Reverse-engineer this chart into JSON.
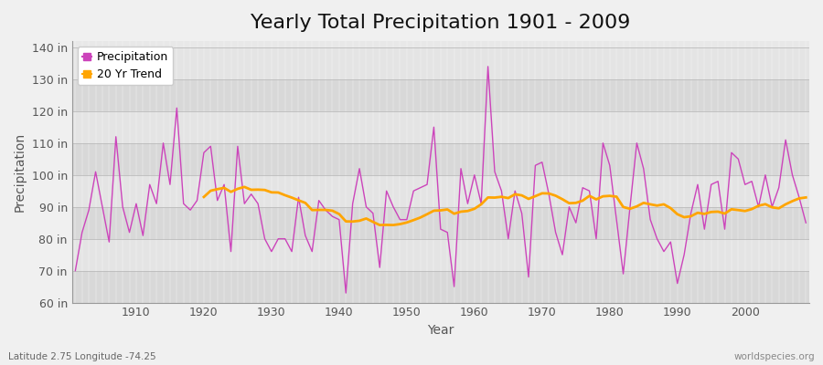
{
  "title": "Yearly Total Precipitation 1901 - 2009",
  "xlabel": "Year",
  "ylabel": "Precipitation",
  "subtitle": "Latitude 2.75 Longitude -74.25",
  "watermark": "worldspecies.org",
  "ylim": [
    60,
    142
  ],
  "yticks": [
    60,
    70,
    80,
    90,
    100,
    110,
    120,
    130,
    140
  ],
  "ytick_labels": [
    "60 in",
    "70 in",
    "80 in",
    "90 in",
    "100 in",
    "110 in",
    "120 in",
    "130 in",
    "140 in"
  ],
  "years": [
    1901,
    1902,
    1903,
    1904,
    1905,
    1906,
    1907,
    1908,
    1909,
    1910,
    1911,
    1912,
    1913,
    1914,
    1915,
    1916,
    1917,
    1918,
    1919,
    1920,
    1921,
    1922,
    1923,
    1924,
    1925,
    1926,
    1927,
    1928,
    1929,
    1930,
    1931,
    1932,
    1933,
    1934,
    1935,
    1936,
    1937,
    1938,
    1939,
    1940,
    1941,
    1942,
    1943,
    1944,
    1945,
    1946,
    1947,
    1948,
    1949,
    1950,
    1951,
    1952,
    1953,
    1954,
    1955,
    1956,
    1957,
    1958,
    1959,
    1960,
    1961,
    1962,
    1963,
    1964,
    1965,
    1966,
    1967,
    1968,
    1969,
    1970,
    1971,
    1972,
    1973,
    1974,
    1975,
    1976,
    1977,
    1978,
    1979,
    1980,
    1981,
    1982,
    1983,
    1984,
    1985,
    1986,
    1987,
    1988,
    1989,
    1990,
    1991,
    1992,
    1993,
    1994,
    1995,
    1996,
    1997,
    1998,
    1999,
    2000,
    2001,
    2002,
    2003,
    2004,
    2005,
    2006,
    2007,
    2008,
    2009
  ],
  "precip": [
    70,
    82,
    89,
    101,
    90,
    79,
    112,
    90,
    82,
    91,
    81,
    97,
    91,
    110,
    97,
    121,
    91,
    89,
    92,
    107,
    109,
    92,
    97,
    76,
    109,
    91,
    94,
    91,
    80,
    76,
    80,
    80,
    76,
    93,
    81,
    76,
    92,
    89,
    87,
    86,
    63,
    91,
    102,
    90,
    88,
    71,
    95,
    90,
    86,
    86,
    95,
    96,
    97,
    115,
    83,
    82,
    65,
    102,
    91,
    100,
    91,
    134,
    101,
    95,
    80,
    95,
    88,
    68,
    103,
    104,
    94,
    82,
    75,
    90,
    85,
    96,
    95,
    80,
    110,
    103,
    86,
    69,
    90,
    110,
    102,
    86,
    80,
    76,
    79,
    66,
    75,
    88,
    97,
    83,
    97,
    98,
    83,
    107,
    105,
    97,
    98,
    90,
    100,
    90,
    96,
    111,
    100,
    93,
    85
  ],
  "precip_color": "#CC44BB",
  "trend_color": "#FFA500",
  "fig_bg_color": "#F0F0F0",
  "plot_bg_color_light": "#E8E8E8",
  "plot_bg_color_dark": "#DCDCDC",
  "title_fontsize": 16,
  "label_fontsize": 9,
  "legend_fontsize": 9,
  "xticks": [
    1910,
    1920,
    1930,
    1940,
    1950,
    1960,
    1970,
    1980,
    1990,
    2000
  ],
  "trend_window": 20
}
